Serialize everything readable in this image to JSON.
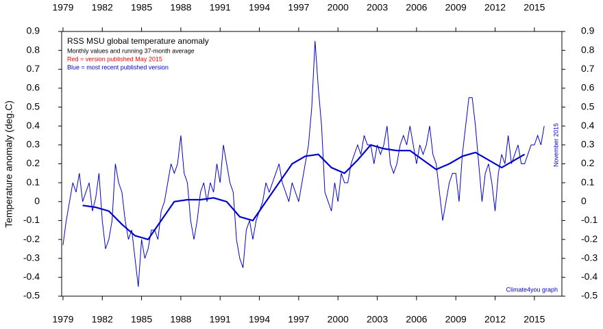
{
  "chart_data": {
    "type": "line",
    "title": "RSS MSU global temperature anomaly",
    "subtitle": "Monthly values and running 37-month average",
    "annotations": [
      {
        "text": "Red = version published May 2015",
        "color": "#ff0000"
      },
      {
        "text": "Blue = most recent published version",
        "color": "#0000cc"
      },
      {
        "text": "Climate4you graph",
        "color": "#0000cc"
      },
      {
        "text": "November 2015",
        "color": "#0000cc"
      }
    ],
    "y_label": "Temperature anomaly (deg.C)",
    "xlim": [
      1978.9,
      2017.1
    ],
    "xticks": [
      1979,
      1982,
      1985,
      1988,
      1991,
      1994,
      1997,
      2000,
      2003,
      2006,
      2009,
      2012,
      2015
    ],
    "ylim": [
      -0.5,
      0.9
    ],
    "yticks": [
      -0.5,
      -0.4,
      -0.3,
      -0.2,
      -0.1,
      0,
      0.1,
      0.2,
      0.3,
      0.4,
      0.5,
      0.6,
      0.7,
      0.8,
      0.9
    ],
    "grid": false,
    "series": [
      {
        "color": "#0000cc",
        "width": 1,
        "x": [
          1979,
          1979.25,
          1979.5,
          1979.75,
          1980,
          1980.25,
          1980.5,
          1980.75,
          1981,
          1981.25,
          1981.5,
          1981.75,
          1982,
          1982.25,
          1982.5,
          1982.75,
          1983,
          1983.25,
          1983.5,
          1983.75,
          1984,
          1984.25,
          1984.5,
          1984.75,
          1985,
          1985.25,
          1985.5,
          1985.75,
          1986,
          1986.25,
          1986.5,
          1986.75,
          1987,
          1987.25,
          1987.5,
          1987.75,
          1988,
          1988.25,
          1988.5,
          1988.75,
          1989,
          1989.25,
          1989.5,
          1989.75,
          1990,
          1990.25,
          1990.5,
          1990.75,
          1991,
          1991.25,
          1991.5,
          1991.75,
          1992,
          1992.25,
          1992.5,
          1992.75,
          1993,
          1993.25,
          1993.5,
          1993.75,
          1994,
          1994.25,
          1994.5,
          1994.75,
          1995,
          1995.25,
          1995.5,
          1995.75,
          1996,
          1996.25,
          1996.5,
          1996.75,
          1997,
          1997.25,
          1997.5,
          1997.75,
          1998,
          1998.25,
          1998.5,
          1998.75,
          1999,
          1999.25,
          1999.5,
          1999.75,
          2000,
          2000.25,
          2000.5,
          2000.75,
          2001,
          2001.25,
          2001.5,
          2001.75,
          2002,
          2002.25,
          2002.5,
          2002.75,
          2003,
          2003.25,
          2003.5,
          2003.75,
          2004,
          2004.25,
          2004.5,
          2004.75,
          2005,
          2005.25,
          2005.5,
          2005.75,
          2006,
          2006.25,
          2006.5,
          2006.75,
          2007,
          2007.25,
          2007.5,
          2007.75,
          2008,
          2008.25,
          2008.5,
          2008.75,
          2009,
          2009.25,
          2009.5,
          2009.75,
          2010,
          2010.25,
          2010.5,
          2010.75,
          2011,
          2011.25,
          2011.5,
          2011.75,
          2012,
          2012.25,
          2012.5,
          2012.75,
          2013,
          2013.25,
          2013.5,
          2013.75,
          2014,
          2014.25,
          2014.5,
          2014.75,
          2015,
          2015.25,
          2015.5,
          2015.75
        ],
        "values": [
          -0.23,
          -0.1,
          0.0,
          0.1,
          0.05,
          0.15,
          0.0,
          0.05,
          0.1,
          -0.05,
          0.02,
          0.15,
          -0.1,
          -0.25,
          -0.2,
          -0.1,
          0.2,
          0.1,
          0.05,
          -0.1,
          -0.2,
          -0.15,
          -0.3,
          -0.45,
          -0.2,
          -0.3,
          -0.25,
          -0.15,
          -0.15,
          -0.2,
          -0.05,
          0.0,
          0.1,
          0.2,
          0.15,
          0.2,
          0.35,
          0.15,
          0.1,
          -0.1,
          -0.2,
          -0.1,
          0.05,
          0.1,
          0.0,
          0.1,
          0.05,
          0.2,
          0.1,
          0.3,
          0.2,
          0.1,
          0.05,
          -0.2,
          -0.3,
          -0.35,
          -0.15,
          -0.1,
          -0.2,
          -0.1,
          -0.05,
          0.0,
          0.1,
          0.05,
          0.1,
          0.15,
          0.2,
          0.1,
          0.05,
          0.0,
          0.1,
          0.05,
          0.0,
          0.1,
          0.2,
          0.3,
          0.5,
          0.85,
          0.6,
          0.4,
          0.05,
          0.0,
          -0.05,
          0.1,
          0.0,
          0.15,
          0.1,
          0.1,
          0.2,
          0.25,
          0.3,
          0.25,
          0.35,
          0.3,
          0.3,
          0.2,
          0.3,
          0.25,
          0.3,
          0.4,
          0.2,
          0.15,
          0.2,
          0.3,
          0.35,
          0.3,
          0.4,
          0.3,
          0.2,
          0.3,
          0.25,
          0.3,
          0.4,
          0.25,
          0.2,
          0.05,
          -0.1,
          0.0,
          0.1,
          0.15,
          0.15,
          0.0,
          0.25,
          0.4,
          0.55,
          0.55,
          0.4,
          0.2,
          0.0,
          0.15,
          0.2,
          0.1,
          -0.05,
          0.15,
          0.25,
          0.2,
          0.35,
          0.2,
          0.25,
          0.3,
          0.2,
          0.2,
          0.25,
          0.3,
          0.3,
          0.35,
          0.3,
          0.4
        ]
      },
      {
        "color": "#0000cc",
        "width": 2.2,
        "x": [
          1980.5,
          1981.5,
          1982.5,
          1983.5,
          1984.5,
          1985.5,
          1986.5,
          1987.5,
          1988.5,
          1989.5,
          1990.5,
          1991.5,
          1992.5,
          1993.5,
          1994.5,
          1995.5,
          1996.5,
          1997.5,
          1998.5,
          1999.5,
          2000.5,
          2001.5,
          2002.5,
          2003.5,
          2004.5,
          2005.5,
          2006.5,
          2007.5,
          2008.5,
          2009.5,
          2010.5,
          2011.5,
          2012.5,
          2013.5,
          2014.25
        ],
        "values": [
          -0.02,
          -0.03,
          -0.05,
          -0.12,
          -0.18,
          -0.2,
          -0.1,
          0.0,
          0.01,
          0.01,
          0.02,
          0.0,
          -0.08,
          -0.1,
          0.0,
          0.1,
          0.2,
          0.24,
          0.25,
          0.18,
          0.15,
          0.22,
          0.3,
          0.28,
          0.27,
          0.27,
          0.22,
          0.17,
          0.2,
          0.24,
          0.26,
          0.22,
          0.18,
          0.22,
          0.25
        ]
      }
    ]
  }
}
